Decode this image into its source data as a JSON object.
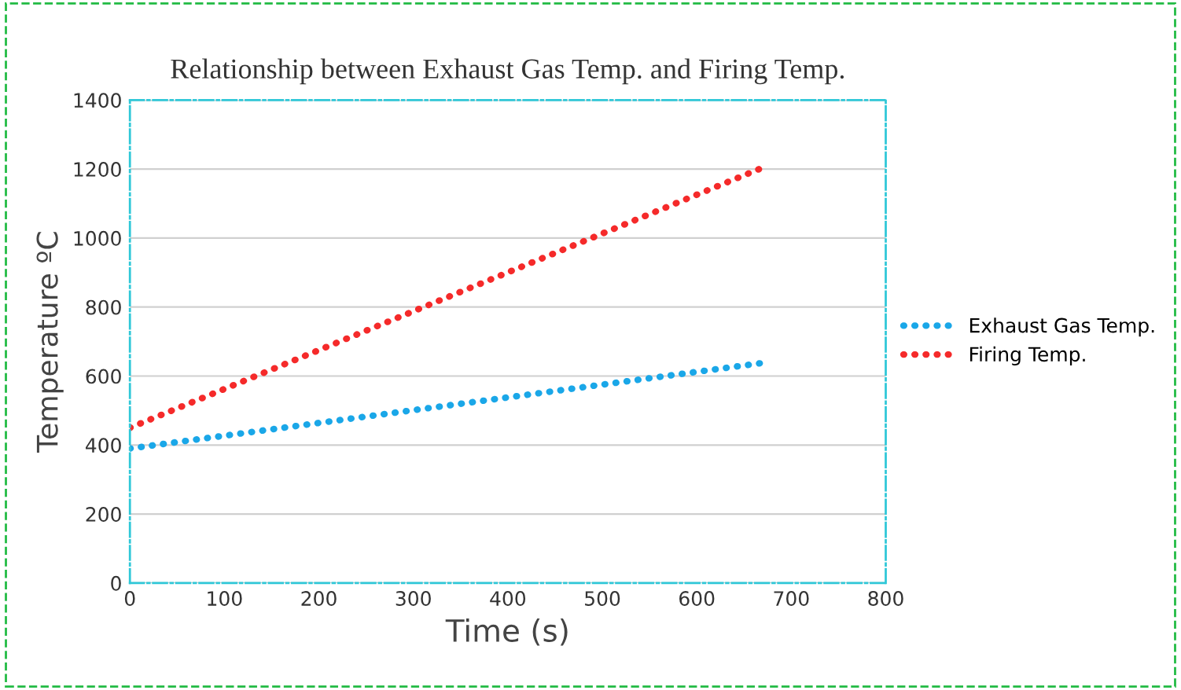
{
  "chart_data": {
    "type": "line",
    "title": "Relationship between Exhaust Gas Temp. and Firing Temp.",
    "xlabel": "Time (s)",
    "ylabel": "Temperature ºC",
    "series": [
      {
        "name": "Exhaust Gas Temp.",
        "color": "#1aa7e8",
        "values": [
          390,
          640
        ]
      },
      {
        "name": "Firing Temp.",
        "color": "#f52a2a",
        "values": [
          450,
          1210
        ]
      }
    ],
    "x": [
      0,
      675
    ],
    "xlim": [
      0,
      800
    ],
    "xticks": [
      0,
      100,
      200,
      300,
      400,
      500,
      600,
      700,
      800
    ],
    "ylim": [
      0,
      1400
    ],
    "yticks": [
      0,
      200,
      400,
      600,
      800,
      1000,
      1200,
      1400
    ],
    "grid": "y",
    "legend": "right",
    "line_style": "dotted",
    "marker": "none"
  }
}
